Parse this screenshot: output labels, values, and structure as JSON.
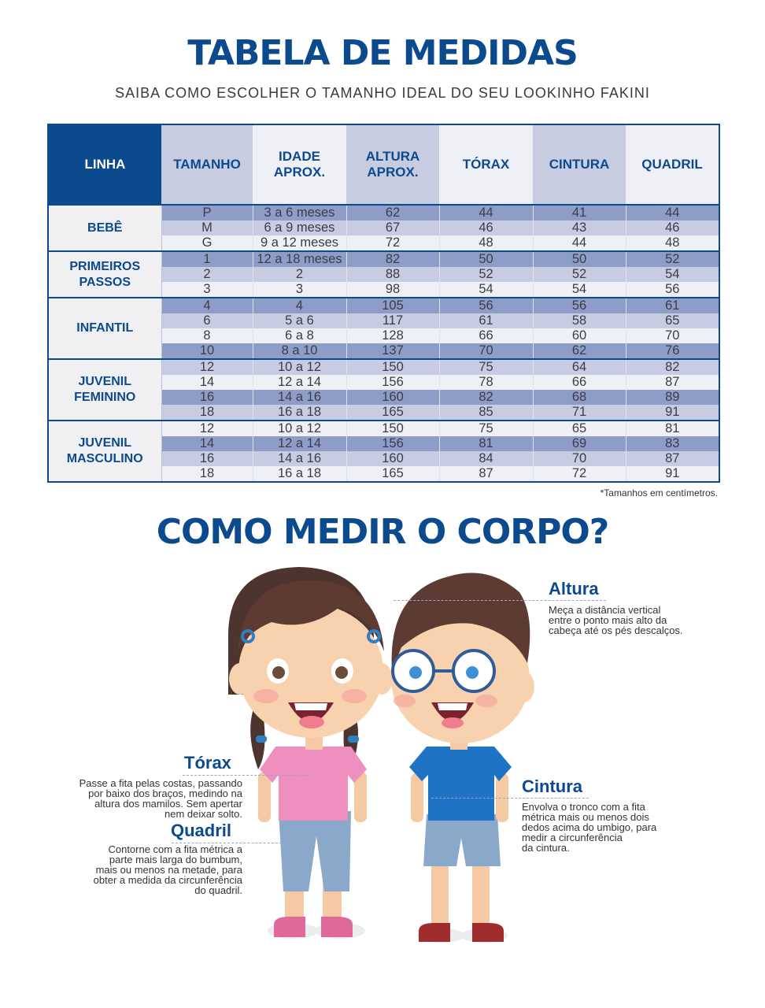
{
  "header": {
    "title": "TABELA DE MEDIDAS",
    "subtitle": "SAIBA COMO ESCOLHER O TAMANHO IDEAL DO SEU LOOKINHO FAKINI"
  },
  "table": {
    "columns": [
      "LINHA",
      "TAMANHO",
      "IDADE\nAPROX.",
      "ALTURA\nAPROX.",
      "TÓRAX",
      "CINTURA",
      "QUADRIL"
    ],
    "groups": [
      {
        "linha": "BEBÊ",
        "rows": [
          [
            "P",
            "3 a 6 meses",
            "62",
            "44",
            "41",
            "44"
          ],
          [
            "M",
            "6 a 9 meses",
            "67",
            "46",
            "43",
            "46"
          ],
          [
            "G",
            "9 a 12 meses",
            "72",
            "48",
            "44",
            "48"
          ]
        ]
      },
      {
        "linha": "PRIMEIROS\nPASSOS",
        "rows": [
          [
            "1",
            "12 a 18 meses",
            "82",
            "50",
            "50",
            "52"
          ],
          [
            "2",
            "2",
            "88",
            "52",
            "52",
            "54"
          ],
          [
            "3",
            "3",
            "98",
            "54",
            "54",
            "56"
          ]
        ]
      },
      {
        "linha": "INFANTIL",
        "rows": [
          [
            "4",
            "4",
            "105",
            "56",
            "56",
            "61"
          ],
          [
            "6",
            "5 a 6",
            "117",
            "61",
            "58",
            "65"
          ],
          [
            "8",
            "6 a 8",
            "128",
            "66",
            "60",
            "70"
          ],
          [
            "10",
            "8 a 10",
            "137",
            "70",
            "62",
            "76"
          ]
        ]
      },
      {
        "linha": "JUVENIL\nFEMININO",
        "rows": [
          [
            "12",
            "10 a 12",
            "150",
            "75",
            "64",
            "82"
          ],
          [
            "14",
            "12 a 14",
            "156",
            "78",
            "66",
            "87"
          ],
          [
            "16",
            "14 a 16",
            "160",
            "82",
            "68",
            "89"
          ],
          [
            "18",
            "16 a 18",
            "165",
            "85",
            "71",
            "91"
          ]
        ]
      },
      {
        "linha": "JUVENIL\nMASCULINO",
        "rows": [
          [
            "12",
            "10 a 12",
            "150",
            "75",
            "65",
            "81"
          ],
          [
            "14",
            "12 a 14",
            "156",
            "81",
            "69",
            "83"
          ],
          [
            "16",
            "14 a 16",
            "160",
            "84",
            "70",
            "87"
          ],
          [
            "18",
            "16 a 18",
            "165",
            "87",
            "72",
            "91"
          ]
        ]
      }
    ],
    "footnote": "*Tamanhos em centímetros."
  },
  "measure": {
    "title": "COMO MEDIR O CORPO?",
    "altura": {
      "label": "Altura",
      "text": " Meça a distância vertical\nentre o ponto mais alto da\ncabeça até os pés descalços."
    },
    "torax": {
      "label": "Tórax",
      "text": "Passe a fita pelas costas, passando\npor baixo dos braços, medindo na\naltura dos mamilos. Sem apertar\nnem deixar solto."
    },
    "quadril": {
      "label": "Quadril",
      "text": "Contorne com a fita métrica a\nparte mais larga do bumbum,\nmais ou menos na metade, para\nobter a medida da circunferência\ndo quadril."
    },
    "cintura": {
      "label": "Cintura",
      "text": "Envolva o tronco com a fita\nmétrica mais ou menos dois\ndedos acima do umbigo, para\nmedir a  circunferência\nda cintura."
    }
  },
  "colors": {
    "brand": "#0b4a8c",
    "row_dark": "#8e9dc8",
    "row_mid": "#c7cce2",
    "row_light": "#eff0f6"
  }
}
